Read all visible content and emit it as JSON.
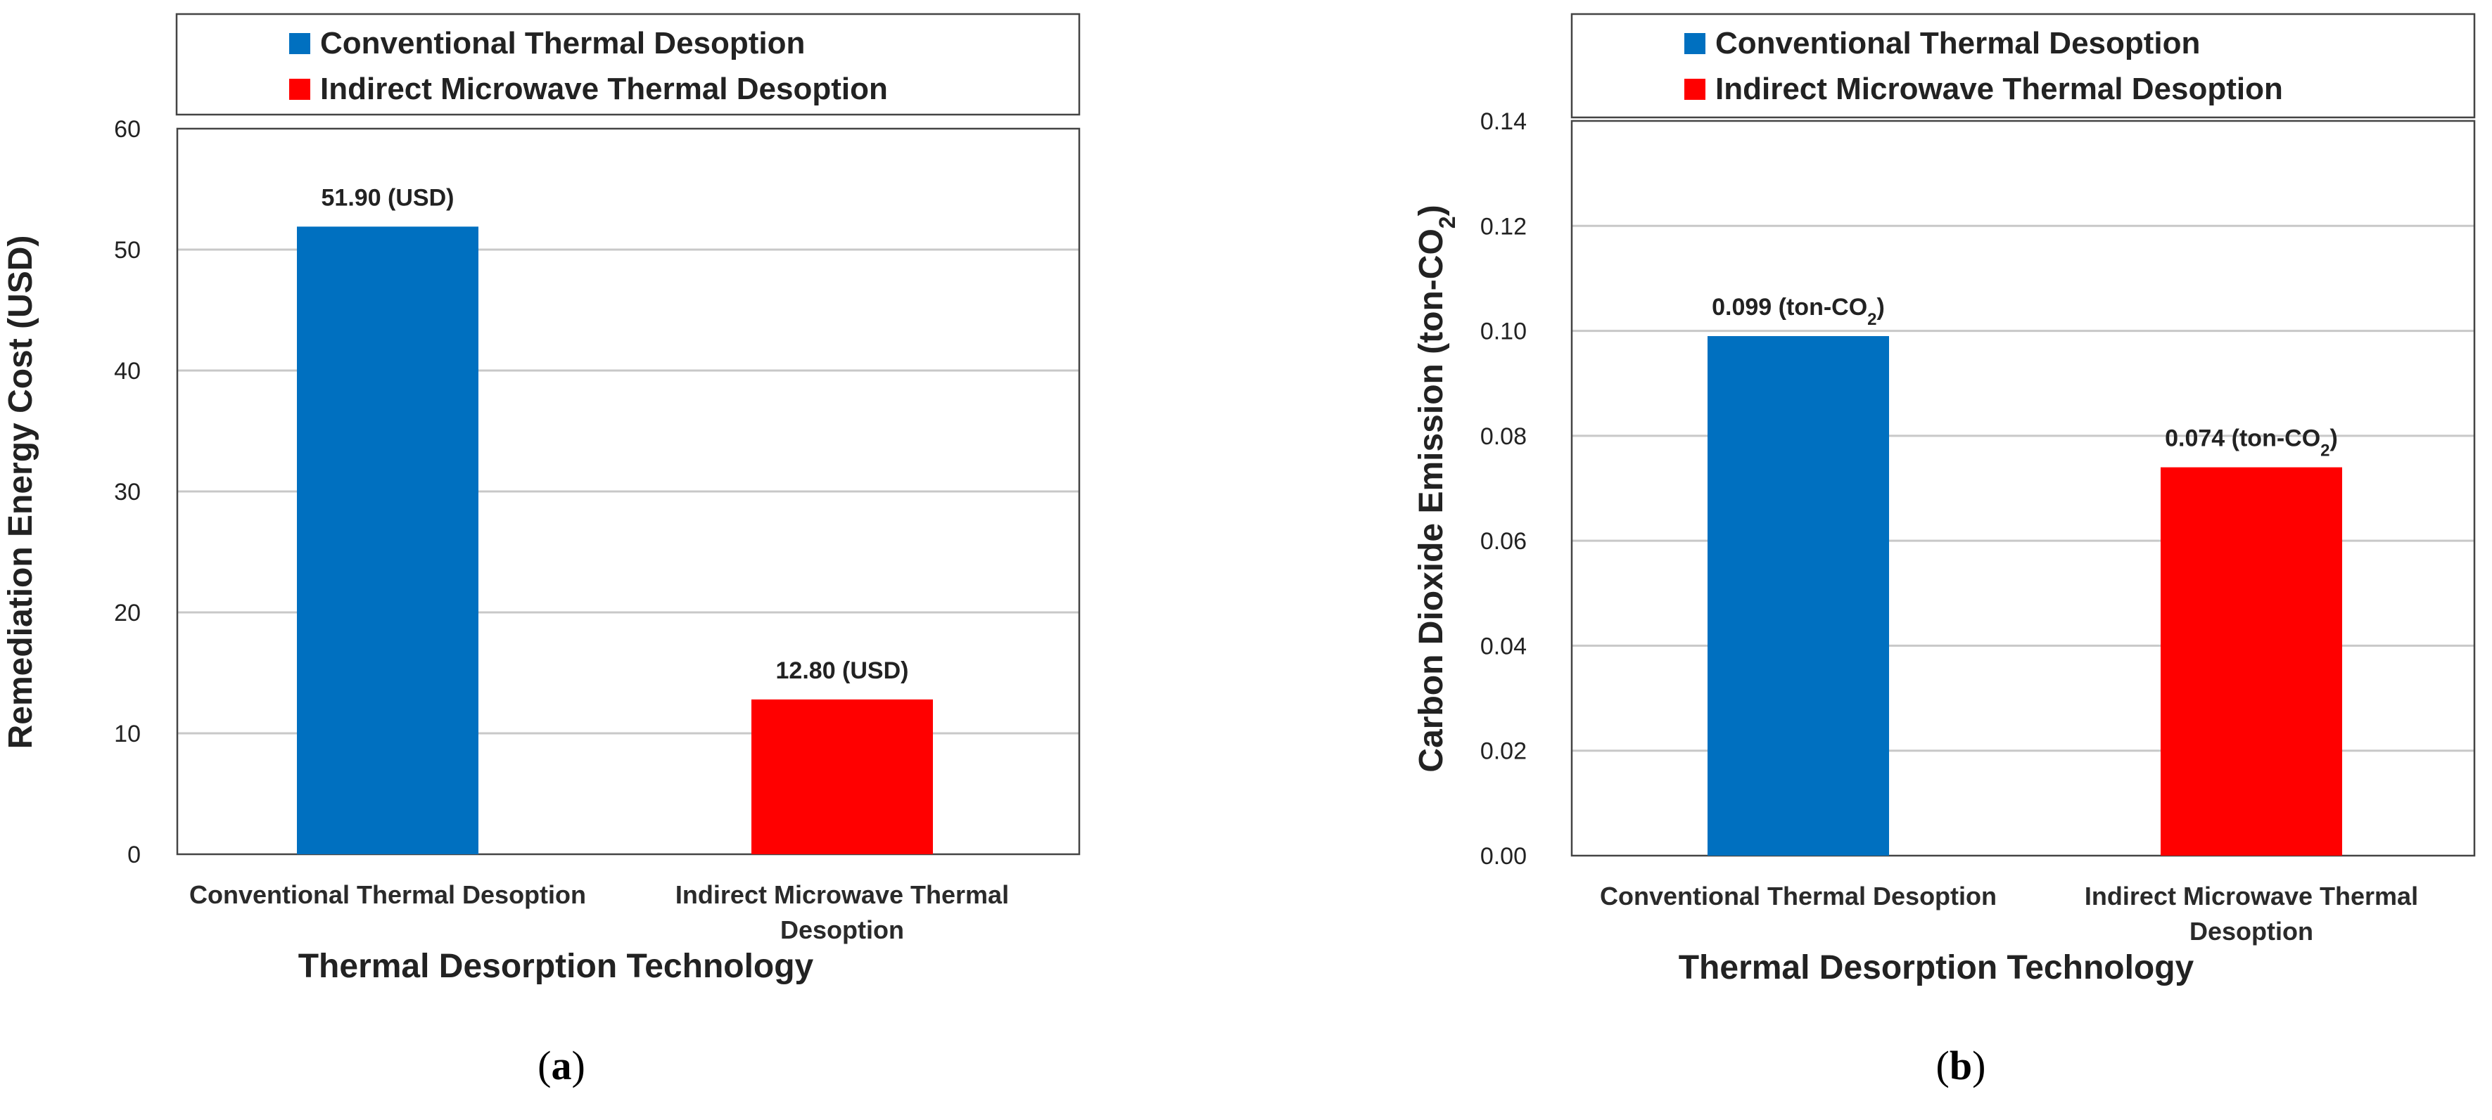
{
  "chart_data": [
    {
      "type": "bar",
      "panel_label": "(a)",
      "panel_letter": "a",
      "categories": [
        {
          "line1": "Conventional Thermal Desoption",
          "line2": ""
        },
        {
          "line1": "Indirect Microwave Thermal",
          "line2": "Desoption"
        }
      ],
      "values": [
        51.9,
        12.8
      ],
      "data_labels": [
        {
          "main": "51.90  (USD)",
          "sub": "",
          "tail": ""
        },
        {
          "main": "12.80  (USD)",
          "sub": "",
          "tail": ""
        }
      ],
      "colors": [
        "#0070C0",
        "#FF0000"
      ],
      "legend": [
        "Conventional Thermal Desoption",
        "Indirect Microwave Thermal Desoption"
      ],
      "ylabel": {
        "main": "Remediation Energy Cost (USD)",
        "sub": "",
        "tail": ""
      },
      "xlabel": "Thermal Desorption Technology",
      "ylim": [
        0,
        60
      ],
      "yticks": [
        0,
        10,
        20,
        30,
        40,
        50,
        60
      ],
      "ytick_labels": [
        "0",
        "10",
        "20",
        "30",
        "40",
        "50",
        "60"
      ],
      "grid": true
    },
    {
      "type": "bar",
      "panel_label": "(b)",
      "panel_letter": "b",
      "categories": [
        {
          "line1": "Conventional Thermal Desoption",
          "line2": ""
        },
        {
          "line1": "Indirect Microwave Thermal",
          "line2": "Desoption"
        }
      ],
      "values": [
        0.099,
        0.074
      ],
      "data_labels": [
        {
          "main": "0.099 (ton-CO",
          "sub": "2",
          "tail": ")"
        },
        {
          "main": "0.074 (ton-CO",
          "sub": "2",
          "tail": ")"
        }
      ],
      "colors": [
        "#0070C0",
        "#FF0000"
      ],
      "legend": [
        "Conventional Thermal Desoption",
        "Indirect Microwave Thermal Desoption"
      ],
      "ylabel": {
        "main": "Carbon Dioxide Emission (ton-CO",
        "sub": "2",
        "tail": ")"
      },
      "xlabel": "Thermal Desorption Technology",
      "ylim": [
        0,
        0.14
      ],
      "yticks": [
        0,
        0.02,
        0.04,
        0.06,
        0.08,
        0.1,
        0.12,
        0.14
      ],
      "ytick_labels": [
        "0.00",
        "0.02",
        "0.04",
        "0.06",
        "0.08",
        "0.10",
        "0.12",
        "0.14"
      ],
      "grid": true
    }
  ]
}
